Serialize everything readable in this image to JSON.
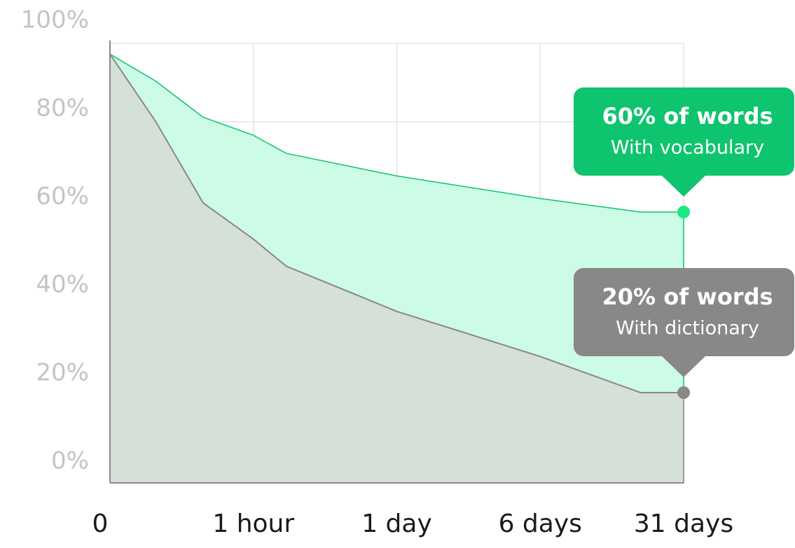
{
  "chart_data": {
    "type": "area",
    "title": "",
    "xlabel": "",
    "ylabel": "",
    "x_categories": [
      "0",
      "1 hour",
      "1 day",
      "6 days",
      "31 days"
    ],
    "y_ticks": [
      "0%",
      "20%",
      "40%",
      "60%",
      "80%",
      "100%"
    ],
    "ylim": [
      0,
      100
    ],
    "grid": true,
    "series": [
      {
        "color": "#0fc46e",
        "fill": "#ccfbe6",
        "points": [
          {
            "x": 0,
            "y": 95
          },
          {
            "x": 0.32,
            "y": 89
          },
          {
            "x": 0.65,
            "y": 81
          },
          {
            "x": 1.0,
            "y": 77
          },
          {
            "x": 1.23,
            "y": 73
          },
          {
            "x": 2.0,
            "y": 68
          },
          {
            "x": 3.0,
            "y": 63
          },
          {
            "x": 3.7,
            "y": 60
          },
          {
            "x": 4.0,
            "y": 60
          }
        ],
        "callout": {
          "title": "60% of words",
          "subtitle": "With vocabulary",
          "value": 60
        }
      },
      {
        "color": "#8a8787",
        "fill": "#d4e0d8",
        "points": [
          {
            "x": 0,
            "y": 95
          },
          {
            "x": 0.32,
            "y": 80
          },
          {
            "x": 0.65,
            "y": 62
          },
          {
            "x": 1.0,
            "y": 54
          },
          {
            "x": 1.23,
            "y": 48
          },
          {
            "x": 2.0,
            "y": 38
          },
          {
            "x": 3.0,
            "y": 28
          },
          {
            "x": 3.7,
            "y": 20
          },
          {
            "x": 4.0,
            "y": 20
          }
        ],
        "callout": {
          "title": "20% of words",
          "subtitle": "With dictionary",
          "value": 20
        }
      }
    ]
  }
}
